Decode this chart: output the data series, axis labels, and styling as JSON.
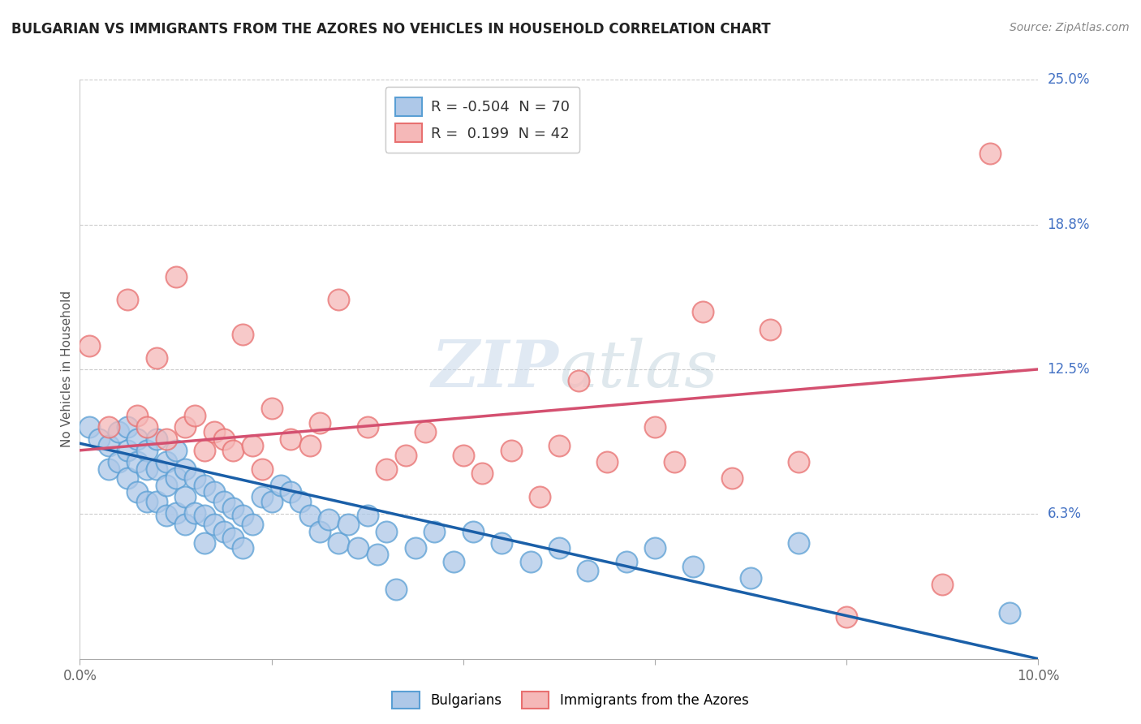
{
  "title": "BULGARIAN VS IMMIGRANTS FROM THE AZORES NO VEHICLES IN HOUSEHOLD CORRELATION CHART",
  "source": "Source: ZipAtlas.com",
  "ylabel": "No Vehicles in Household",
  "xlim": [
    0.0,
    0.1
  ],
  "ylim": [
    0.0,
    0.25
  ],
  "blue_face_color": "#aec8e8",
  "blue_edge_color": "#5a9fd4",
  "pink_face_color": "#f5b8b8",
  "pink_edge_color": "#e87070",
  "blue_line_color": "#1a5fa8",
  "pink_line_color": "#d45070",
  "legend_blue_label": "R = -0.504  N = 70",
  "legend_pink_label": "R =  0.199  N = 42",
  "legend_label_bulgarians": "Bulgarians",
  "legend_label_azores": "Immigrants from the Azores",
  "blue_scatter_x": [
    0.001,
    0.002,
    0.003,
    0.003,
    0.004,
    0.004,
    0.005,
    0.005,
    0.005,
    0.006,
    0.006,
    0.006,
    0.007,
    0.007,
    0.007,
    0.008,
    0.008,
    0.008,
    0.009,
    0.009,
    0.009,
    0.01,
    0.01,
    0.01,
    0.011,
    0.011,
    0.011,
    0.012,
    0.012,
    0.013,
    0.013,
    0.013,
    0.014,
    0.014,
    0.015,
    0.015,
    0.016,
    0.016,
    0.017,
    0.017,
    0.018,
    0.019,
    0.02,
    0.021,
    0.022,
    0.023,
    0.024,
    0.025,
    0.026,
    0.027,
    0.028,
    0.029,
    0.03,
    0.031,
    0.032,
    0.033,
    0.035,
    0.037,
    0.039,
    0.041,
    0.044,
    0.047,
    0.05,
    0.053,
    0.057,
    0.06,
    0.064,
    0.07,
    0.075,
    0.097
  ],
  "blue_scatter_y": [
    0.1,
    0.095,
    0.092,
    0.082,
    0.098,
    0.085,
    0.1,
    0.09,
    0.078,
    0.095,
    0.085,
    0.072,
    0.09,
    0.082,
    0.068,
    0.095,
    0.082,
    0.068,
    0.085,
    0.075,
    0.062,
    0.09,
    0.078,
    0.063,
    0.082,
    0.07,
    0.058,
    0.078,
    0.063,
    0.075,
    0.062,
    0.05,
    0.072,
    0.058,
    0.068,
    0.055,
    0.065,
    0.052,
    0.062,
    0.048,
    0.058,
    0.07,
    0.068,
    0.075,
    0.072,
    0.068,
    0.062,
    0.055,
    0.06,
    0.05,
    0.058,
    0.048,
    0.062,
    0.045,
    0.055,
    0.03,
    0.048,
    0.055,
    0.042,
    0.055,
    0.05,
    0.042,
    0.048,
    0.038,
    0.042,
    0.048,
    0.04,
    0.035,
    0.05,
    0.02
  ],
  "pink_scatter_x": [
    0.001,
    0.003,
    0.005,
    0.006,
    0.007,
    0.008,
    0.009,
    0.01,
    0.011,
    0.012,
    0.013,
    0.014,
    0.015,
    0.016,
    0.017,
    0.018,
    0.019,
    0.02,
    0.022,
    0.024,
    0.025,
    0.027,
    0.03,
    0.032,
    0.034,
    0.036,
    0.04,
    0.042,
    0.045,
    0.048,
    0.05,
    0.052,
    0.055,
    0.06,
    0.062,
    0.065,
    0.068,
    0.072,
    0.075,
    0.08,
    0.09,
    0.095
  ],
  "pink_scatter_y": [
    0.135,
    0.1,
    0.155,
    0.105,
    0.1,
    0.13,
    0.095,
    0.165,
    0.1,
    0.105,
    0.09,
    0.098,
    0.095,
    0.09,
    0.14,
    0.092,
    0.082,
    0.108,
    0.095,
    0.092,
    0.102,
    0.155,
    0.1,
    0.082,
    0.088,
    0.098,
    0.088,
    0.08,
    0.09,
    0.07,
    0.092,
    0.12,
    0.085,
    0.1,
    0.085,
    0.15,
    0.078,
    0.142,
    0.085,
    0.018,
    0.032,
    0.218
  ]
}
